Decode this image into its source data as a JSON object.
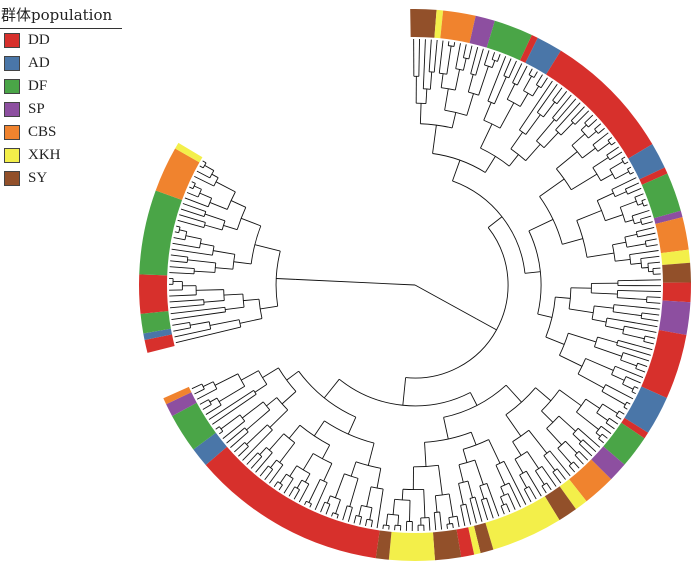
{
  "legend": {
    "title": "群体population",
    "items": [
      {
        "label": "DD",
        "color": "#d7302c"
      },
      {
        "label": "AD",
        "color": "#4a76a8"
      },
      {
        "label": "DF",
        "color": "#4aa547"
      },
      {
        "label": "SP",
        "color": "#8d4fa0"
      },
      {
        "label": "CBS",
        "color": "#f0832e"
      },
      {
        "label": "XKH",
        "color": "#f3ef4a"
      },
      {
        "label": "SY",
        "color": "#92502a"
      }
    ]
  },
  "populations": {
    "DD": "#d7302c",
    "AD": "#4a76a8",
    "DF": "#4aa547",
    "SP": "#8d4fa0",
    "CBS": "#f0832e",
    "XKH": "#f3ef4a",
    "SY": "#92502a"
  },
  "ring_segments": [
    {
      "pop": "SY",
      "span": 4
    },
    {
      "pop": "XKH",
      "span": 1
    },
    {
      "pop": "CBS",
      "span": 5
    },
    {
      "pop": "SP",
      "span": 3
    },
    {
      "pop": "DF",
      "span": 6
    },
    {
      "pop": "DD",
      "span": 1
    },
    {
      "pop": "AD",
      "span": 4
    },
    {
      "pop": "DD",
      "span": 20
    },
    {
      "pop": "AD",
      "span": 4
    },
    {
      "pop": "DD",
      "span": 1
    },
    {
      "pop": "DF",
      "span": 6
    },
    {
      "pop": "SP",
      "span": 1
    },
    {
      "pop": "CBS",
      "span": 5
    },
    {
      "pop": "XKH",
      "span": 2
    },
    {
      "pop": "SY",
      "span": 3
    },
    {
      "pop": "DD",
      "span": 3
    },
    {
      "pop": "SP",
      "span": 5
    },
    {
      "pop": "DD",
      "span": 10
    },
    {
      "pop": "AD",
      "span": 6
    },
    {
      "pop": "DD",
      "span": 1
    },
    {
      "pop": "DF",
      "span": 5
    },
    {
      "pop": "SP",
      "span": 3
    },
    {
      "pop": "CBS",
      "span": 5
    },
    {
      "pop": "XKH",
      "span": 2
    },
    {
      "pop": "SY",
      "span": 3
    },
    {
      "pop": "XKH",
      "span": 11
    },
    {
      "pop": "SY",
      "span": 2
    },
    {
      "pop": "XKH",
      "span": 1
    },
    {
      "pop": "DD",
      "span": 2
    },
    {
      "pop": "SY",
      "span": 4
    },
    {
      "pop": "XKH",
      "span": 7
    },
    {
      "pop": "SY",
      "span": 2
    },
    {
      "pop": "DD",
      "span": 30
    },
    {
      "pop": "AD",
      "span": 3
    },
    {
      "pop": "DF",
      "span": 6
    },
    {
      "pop": "SP",
      "span": 2
    },
    {
      "pop": "CBS",
      "span": 1
    },
    {
      "pop": "GAP",
      "span": 0
    },
    {
      "pop": "DD",
      "span": 2
    },
    {
      "pop": "AD",
      "span": 1
    },
    {
      "pop": "DF",
      "span": 3
    },
    {
      "pop": "DD",
      "span": 6
    },
    {
      "pop": "DF",
      "span": 13
    },
    {
      "pop": "CBS",
      "span": 7
    },
    {
      "pop": "XKH",
      "span": 1
    }
  ],
  "ring_counts_explicit": true
}
